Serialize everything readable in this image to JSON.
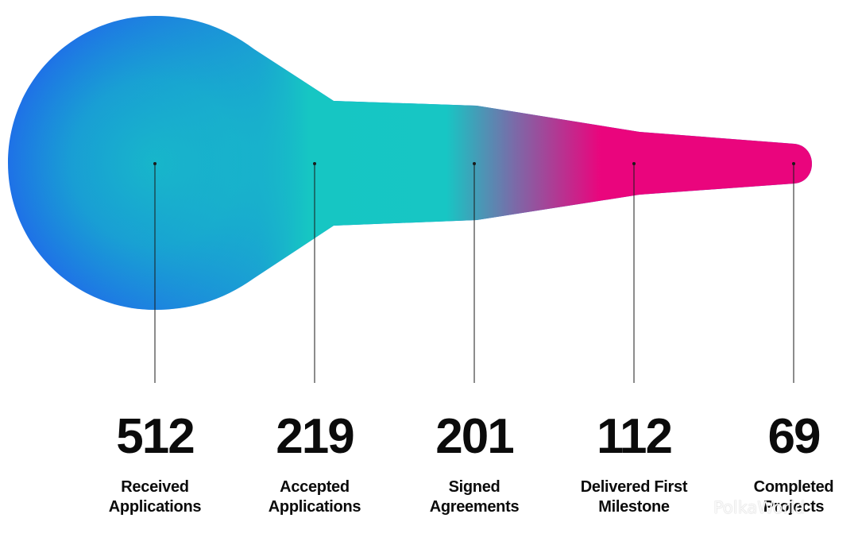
{
  "chart_data": {
    "type": "funnel",
    "title": "",
    "stages": [
      {
        "value": 512,
        "label_line1": "Received",
        "label_line2": "Applications"
      },
      {
        "value": 219,
        "label_line1": "Accepted",
        "label_line2": "Applications"
      },
      {
        "value": 201,
        "label_line1": "Signed",
        "label_line2": "Agreements"
      },
      {
        "value": 112,
        "label_line1": "Delivered First",
        "label_line2": "Milestone"
      },
      {
        "value": 69,
        "label_line1": "Completed",
        "label_line2": "Projects"
      }
    ],
    "colors": {
      "blue": "#1f6ee8",
      "teal": "#16c6c3",
      "magenta": "#ea057d",
      "text": "#0b0b0b"
    }
  },
  "watermark": {
    "text": "PolkaWorld",
    "icon": "wechat-icon"
  }
}
